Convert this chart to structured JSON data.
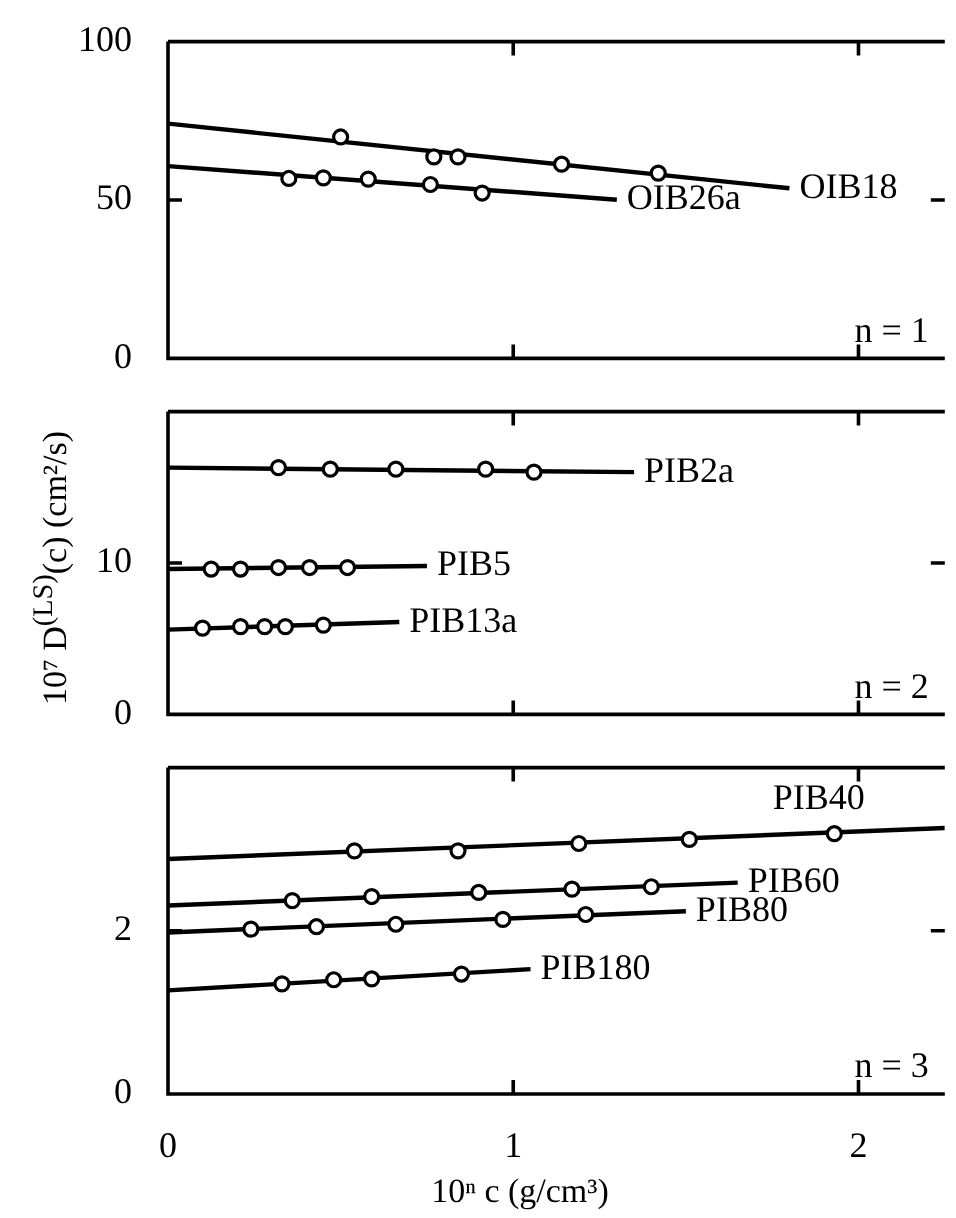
{
  "chart_data": [
    {
      "type": "scatter",
      "xlim": [
        0,
        2.25
      ],
      "xticks": [
        0,
        1,
        2
      ],
      "ylim": [
        0,
        100
      ],
      "yticks": [
        0,
        50,
        100
      ],
      "tick_labels": "y",
      "series": [
        {
          "type": "line",
          "name": "OIB18",
          "color": "#000000",
          "marker": "none",
          "x": [
            0,
            1.8
          ],
          "values": [
            74.1,
            53.7
          ]
        },
        {
          "type": "scatter",
          "color": "#000000",
          "marker": "circle",
          "x": [
            0.5,
            0.77,
            0.84,
            1.14,
            1.42
          ],
          "values": [
            69.9,
            63.6,
            63.6,
            61.3,
            58.5
          ]
        },
        {
          "type": "line",
          "name": "OIB26a",
          "color": "#000000",
          "marker": "none",
          "x": [
            0,
            1.3
          ],
          "values": [
            60.7,
            50.1
          ]
        },
        {
          "type": "scatter",
          "color": "#000000",
          "marker": "circle",
          "x": [
            0.35,
            0.45,
            0.58,
            0.76,
            0.91
          ],
          "values": [
            56.8,
            57.0,
            56.6,
            54.9,
            52.2
          ]
        }
      ],
      "annotations": [
        "n = 1"
      ]
    },
    {
      "type": "scatter",
      "xlim": [
        0,
        2.25
      ],
      "xticks": [
        0,
        1,
        2
      ],
      "ylim": [
        0,
        20
      ],
      "yticks": [
        0,
        10
      ],
      "tick_labels": "y",
      "ylabel": "10⁷ D$^{(LS)}$(c)  (cm²/s)",
      "series": [
        {
          "type": "line",
          "name": "PIB2a",
          "color": "#000000",
          "marker": "none",
          "x": [
            0,
            1.35
          ],
          "values": [
            16.3,
            16.0
          ]
        },
        {
          "type": "scatter",
          "color": "#000000",
          "marker": "circle",
          "x": [
            0.32,
            0.47,
            0.66,
            0.92,
            1.06
          ],
          "values": [
            16.3,
            16.2,
            16.2,
            16.2,
            16.0
          ]
        },
        {
          "type": "line",
          "name": "PIB5",
          "color": "#000000",
          "marker": "none",
          "x": [
            0,
            0.75
          ],
          "values": [
            9.6,
            9.8
          ]
        },
        {
          "type": "scatter",
          "color": "#000000",
          "marker": "circle",
          "x": [
            0.125,
            0.21,
            0.32,
            0.41,
            0.52
          ],
          "values": [
            9.6,
            9.6,
            9.7,
            9.7,
            9.7
          ]
        },
        {
          "type": "line",
          "name": "PIB13a",
          "color": "#000000",
          "marker": "none",
          "x": [
            0,
            0.67
          ],
          "values": [
            5.6,
            6.1
          ]
        },
        {
          "type": "scatter",
          "color": "#000000",
          "marker": "circle",
          "x": [
            0.1,
            0.21,
            0.28,
            0.34,
            0.45
          ],
          "values": [
            5.7,
            5.8,
            5.8,
            5.8,
            5.9
          ]
        }
      ],
      "annotations": [
        "n = 2"
      ]
    },
    {
      "type": "scatter",
      "xlim": [
        0,
        2.25
      ],
      "xticks": [
        0,
        1,
        2
      ],
      "ylim": [
        0,
        4
      ],
      "yticks": [
        0,
        2
      ],
      "xlabel": "10ⁿ c  (g/cm³)",
      "series": [
        {
          "type": "line",
          "name": "PIB40",
          "color": "#000000",
          "marker": "none",
          "x": [
            0,
            2.25
          ],
          "values": [
            2.88,
            3.26
          ]
        },
        {
          "type": "scatter",
          "color": "#000000",
          "marker": "circle",
          "x": [
            0.54,
            0.84,
            1.19,
            1.51,
            1.93
          ],
          "values": [
            2.98,
            2.98,
            3.07,
            3.12,
            3.19
          ]
        },
        {
          "type": "line",
          "name": "PIB60",
          "color": "#000000",
          "marker": "none",
          "x": [
            0,
            1.65
          ],
          "values": [
            2.31,
            2.59
          ]
        },
        {
          "type": "scatter",
          "color": "#000000",
          "marker": "circle",
          "x": [
            0.36,
            0.59,
            0.9,
            1.17,
            1.4
          ],
          "values": [
            2.37,
            2.42,
            2.47,
            2.51,
            2.54
          ]
        },
        {
          "type": "line",
          "name": "PIB80",
          "color": "#000000",
          "marker": "none",
          "x": [
            0,
            1.5
          ],
          "values": [
            1.98,
            2.24
          ]
        },
        {
          "type": "scatter",
          "color": "#000000",
          "marker": "circle",
          "x": [
            0.24,
            0.43,
            0.66,
            0.97,
            1.21
          ],
          "values": [
            2.02,
            2.05,
            2.08,
            2.14,
            2.2
          ]
        },
        {
          "type": "line",
          "name": "PIB180",
          "color": "#000000",
          "marker": "none",
          "x": [
            0,
            1.05
          ],
          "values": [
            1.27,
            1.53
          ]
        },
        {
          "type": "scatter",
          "color": "#000000",
          "marker": "circle",
          "x": [
            0.33,
            0.48,
            0.59,
            0.85
          ],
          "values": [
            1.35,
            1.4,
            1.41,
            1.47
          ]
        }
      ],
      "annotations": [
        "n = 3"
      ]
    }
  ]
}
